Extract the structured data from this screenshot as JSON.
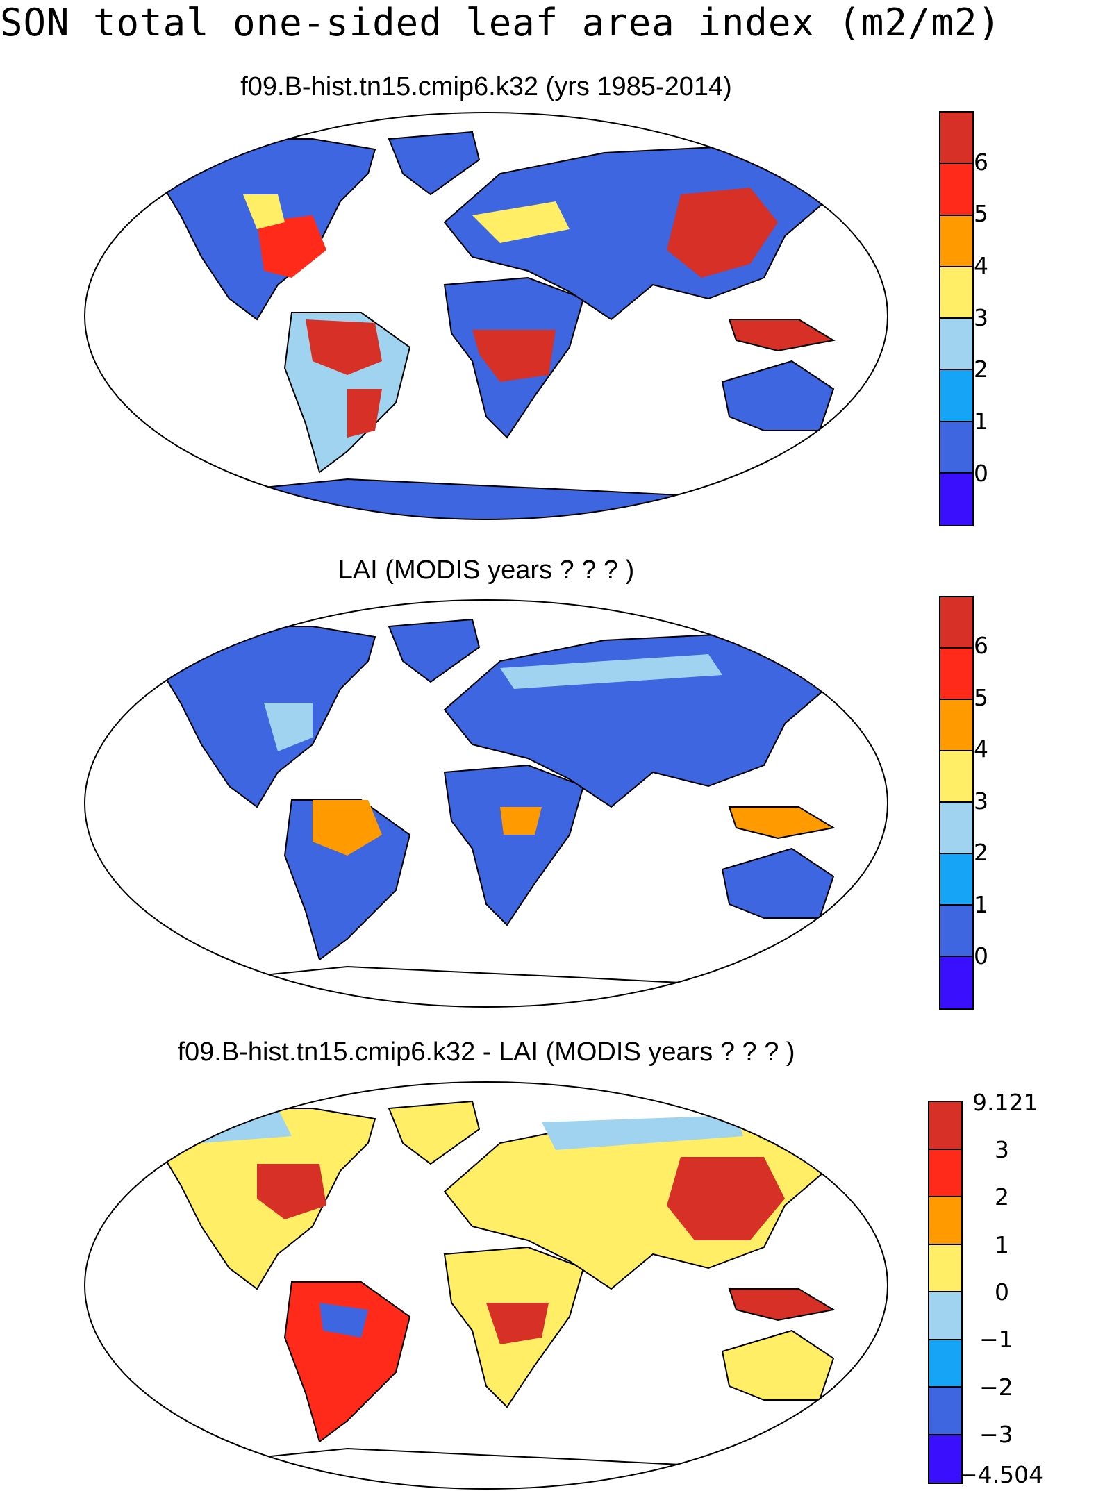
{
  "figure": {
    "title": "SON total one-sided leaf area index (m2/m2)"
  },
  "panels": [
    {
      "title": "f09.B-hist.tn15.cmip6.k32 (yrs 1985-2014)",
      "colorbar": {
        "colors": [
          "#d73027",
          "#ff2a1a",
          "#ff9b00",
          "#ffee66",
          "#9fd3f0",
          "#16a5f6",
          "#3d66e0",
          "#3a0ffd"
        ],
        "labels": [
          "6",
          "5",
          "4",
          "3",
          "2",
          "1",
          "0"
        ]
      }
    },
    {
      "title": "LAI (MODIS years ? ? ? )",
      "colorbar": {
        "colors": [
          "#d73027",
          "#ff2a1a",
          "#ff9b00",
          "#ffee66",
          "#9fd3f0",
          "#16a5f6",
          "#3d66e0",
          "#3a0ffd"
        ],
        "labels": [
          "6",
          "5",
          "4",
          "3",
          "2",
          "1",
          "0"
        ]
      }
    },
    {
      "title": "f09.B-hist.tn15.cmip6.k32 - LAI (MODIS years ? ? ? )",
      "colorbar": {
        "colors": [
          "#d73027",
          "#ff2a1a",
          "#ff9b00",
          "#ffee66",
          "#9fd3f0",
          "#16a5f6",
          "#3d66e0",
          "#3a0ffd"
        ],
        "labels": [
          "9.121",
          "3",
          "2",
          "1",
          "0",
          "−1",
          "−2",
          "−3",
          "−4.504"
        ]
      }
    }
  ],
  "colors": {
    "ocean": "#ffffff",
    "outline": "#000000",
    "low": "#3d66e0",
    "mid": "#ffee66",
    "high": "#d73027"
  }
}
